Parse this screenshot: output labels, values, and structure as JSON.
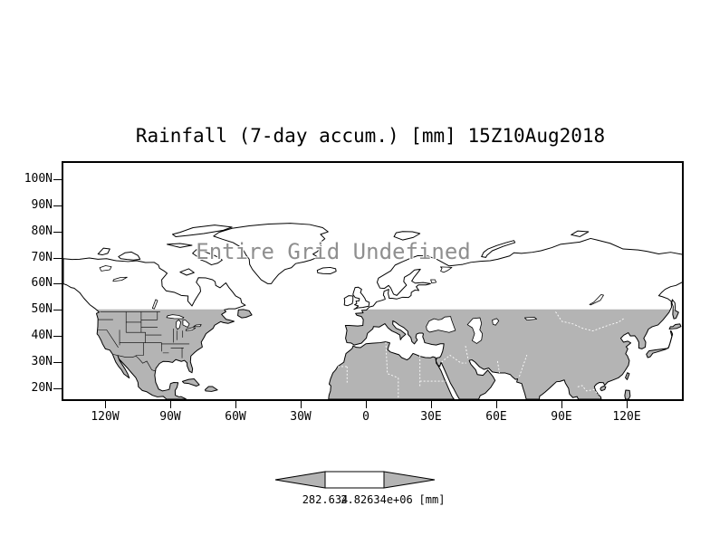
{
  "title": "Rainfall (7-day accum.) [mm] 15Z10Aug2018",
  "map": {
    "undefined_message": "Entire Grid Undefined",
    "y_axis_labels": [
      "100N",
      "90N",
      "80N",
      "70N",
      "60N",
      "50N",
      "40N",
      "30N",
      "20N"
    ],
    "x_axis_labels": [
      "120W",
      "90W",
      "60W",
      "30W",
      "0",
      "30E",
      "60E",
      "90E",
      "120E"
    ]
  },
  "colorbar": {
    "left_label": "282.634",
    "right_label": "2.82634e+06",
    "units_label": "[mm]"
  },
  "colors": {
    "land_shade": "#b4b4b4",
    "coastline": "#000000",
    "undefined_text": "#8f8f8f",
    "background": "#ffffff"
  },
  "chart_data": {
    "type": "map",
    "title": "Rainfall (7-day accum.) [mm] 15Z10Aug2018",
    "variable": "Rainfall (7-day accum.)",
    "units": "mm",
    "valid_time": "15Z10Aug2018",
    "projection": "latlon",
    "x_tick_labels": [
      "120W",
      "90W",
      "60W",
      "30W",
      "0",
      "30E",
      "60E",
      "90E",
      "120E"
    ],
    "y_tick_labels": [
      "100N",
      "90N",
      "80N",
      "70N",
      "60N",
      "50N",
      "40N",
      "30N",
      "20N"
    ],
    "data_status": "Entire Grid Undefined",
    "shaded_region": "land areas south of 50N shaded gray",
    "colorbar_labels": [
      "282.634",
      "2.82634e+06"
    ],
    "colorbar_units": "[mm]",
    "values": []
  }
}
